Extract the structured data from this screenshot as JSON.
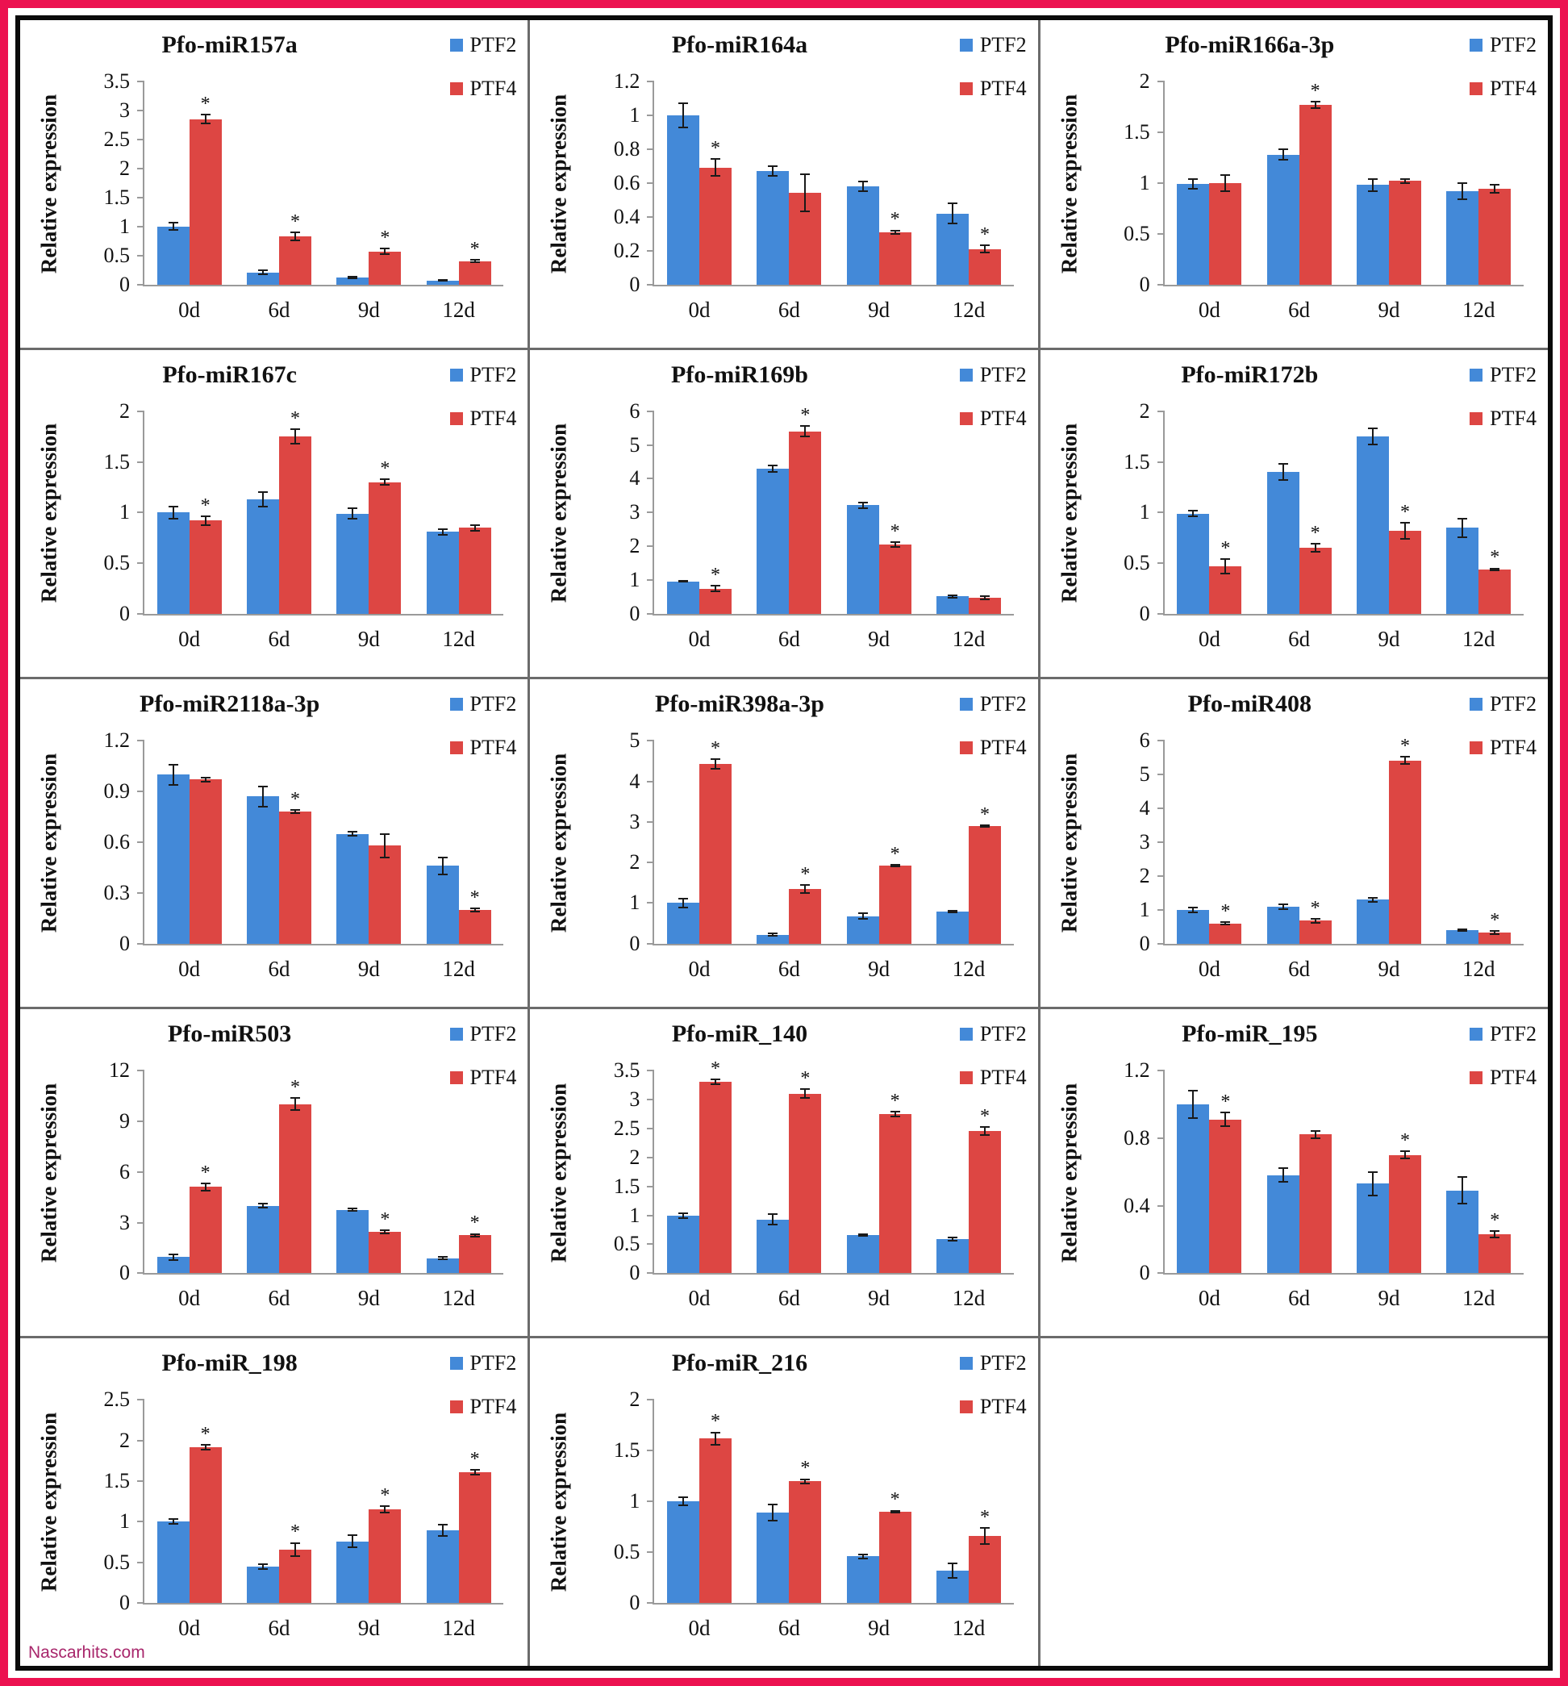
{
  "watermark": "Nascarhits.com",
  "ylabel": "Relative expression",
  "legend_labels": [
    "PTF2",
    "PTF4"
  ],
  "colors": {
    "ptf2": "#4389d8",
    "ptf4": "#dd4643",
    "frame_outer": "#ec1250",
    "frame_inner": "#0b0b0b",
    "axis": "#9a9a9a",
    "watermark": "#a8266b"
  },
  "chart_data": [
    {
      "type": "bar",
      "title": "Pfo-miR157a",
      "ylim": [
        0,
        3.5
      ],
      "yticks": [
        0,
        0.5,
        1,
        1.5,
        2,
        2.5,
        3,
        3.5
      ],
      "categories": [
        "0d",
        "6d",
        "9d",
        "12d"
      ],
      "series": [
        {
          "name": "PTF2",
          "values": [
            1.0,
            0.21,
            0.12,
            0.07
          ],
          "errors": [
            0.06,
            0.03,
            0.02,
            0.01
          ],
          "sig": [
            false,
            false,
            false,
            false
          ]
        },
        {
          "name": "PTF4",
          "values": [
            2.85,
            0.83,
            0.57,
            0.4
          ],
          "errors": [
            0.08,
            0.07,
            0.05,
            0.02
          ],
          "sig": [
            true,
            true,
            true,
            true
          ]
        }
      ]
    },
    {
      "type": "bar",
      "title": "Pfo-miR164a",
      "ylim": [
        0,
        1.2
      ],
      "yticks": [
        0,
        0.2,
        0.4,
        0.6,
        0.8,
        1,
        1.2
      ],
      "categories": [
        "0d",
        "6d",
        "9d",
        "12d"
      ],
      "series": [
        {
          "name": "PTF2",
          "values": [
            1.0,
            0.67,
            0.58,
            0.42
          ],
          "errors": [
            0.07,
            0.03,
            0.03,
            0.06
          ],
          "sig": [
            false,
            false,
            false,
            false
          ]
        },
        {
          "name": "PTF4",
          "values": [
            0.69,
            0.54,
            0.31,
            0.21
          ],
          "errors": [
            0.05,
            0.11,
            0.01,
            0.02
          ],
          "sig": [
            true,
            false,
            true,
            true
          ]
        }
      ]
    },
    {
      "type": "bar",
      "title": "Pfo-miR166a-3p",
      "ylim": [
        0,
        2
      ],
      "yticks": [
        0,
        0.5,
        1,
        1.5,
        2
      ],
      "categories": [
        "0d",
        "6d",
        "9d",
        "12d"
      ],
      "series": [
        {
          "name": "PTF2",
          "values": [
            0.99,
            1.28,
            0.98,
            0.92
          ],
          "errors": [
            0.05,
            0.05,
            0.06,
            0.08
          ],
          "sig": [
            false,
            false,
            false,
            false
          ]
        },
        {
          "name": "PTF4",
          "values": [
            1.0,
            1.77,
            1.02,
            0.94
          ],
          "errors": [
            0.08,
            0.03,
            0.02,
            0.04
          ],
          "sig": [
            false,
            true,
            false,
            false
          ]
        }
      ]
    },
    {
      "type": "bar",
      "title": "Pfo-miR167c",
      "ylim": [
        0,
        2
      ],
      "yticks": [
        0,
        0.5,
        1,
        1.5,
        2
      ],
      "categories": [
        "0d",
        "6d",
        "9d",
        "12d"
      ],
      "series": [
        {
          "name": "PTF2",
          "values": [
            1.0,
            1.13,
            0.99,
            0.81
          ],
          "errors": [
            0.06,
            0.07,
            0.05,
            0.03
          ],
          "sig": [
            false,
            false,
            false,
            false
          ]
        },
        {
          "name": "PTF4",
          "values": [
            0.92,
            1.75,
            1.3,
            0.85
          ],
          "errors": [
            0.04,
            0.07,
            0.03,
            0.03
          ],
          "sig": [
            true,
            true,
            true,
            false
          ]
        }
      ]
    },
    {
      "type": "bar",
      "title": "Pfo-miR169b",
      "ylim": [
        0,
        6
      ],
      "yticks": [
        0,
        1,
        2,
        3,
        4,
        5,
        6
      ],
      "categories": [
        "0d",
        "6d",
        "9d",
        "12d"
      ],
      "series": [
        {
          "name": "PTF2",
          "values": [
            0.97,
            4.3,
            3.22,
            0.52
          ],
          "errors": [
            0.02,
            0.1,
            0.08,
            0.04
          ],
          "sig": [
            false,
            false,
            false,
            false
          ]
        },
        {
          "name": "PTF4",
          "values": [
            0.75,
            5.4,
            2.05,
            0.48
          ],
          "errors": [
            0.08,
            0.15,
            0.07,
            0.04
          ],
          "sig": [
            true,
            true,
            true,
            false
          ]
        }
      ]
    },
    {
      "type": "bar",
      "title": "Pfo-miR172b",
      "ylim": [
        0,
        2
      ],
      "yticks": [
        0,
        0.5,
        1,
        1.5,
        2
      ],
      "categories": [
        "0d",
        "6d",
        "9d",
        "12d"
      ],
      "series": [
        {
          "name": "PTF2",
          "values": [
            0.99,
            1.4,
            1.75,
            0.85
          ],
          "errors": [
            0.03,
            0.08,
            0.08,
            0.09
          ],
          "sig": [
            false,
            false,
            false,
            false
          ]
        },
        {
          "name": "PTF4",
          "values": [
            0.47,
            0.65,
            0.82,
            0.44
          ],
          "errors": [
            0.07,
            0.04,
            0.08,
            0.01
          ],
          "sig": [
            true,
            true,
            true,
            true
          ]
        }
      ]
    },
    {
      "type": "bar",
      "title": "Pfo-miR2118a-3p",
      "ylim": [
        0,
        1.2
      ],
      "yticks": [
        0,
        0.3,
        0.6,
        0.9,
        1.2
      ],
      "categories": [
        "0d",
        "6d",
        "9d",
        "12d"
      ],
      "series": [
        {
          "name": "PTF2",
          "values": [
            1.0,
            0.87,
            0.65,
            0.46
          ],
          "errors": [
            0.06,
            0.06,
            0.01,
            0.05
          ],
          "sig": [
            false,
            false,
            false,
            false
          ]
        },
        {
          "name": "PTF4",
          "values": [
            0.97,
            0.78,
            0.58,
            0.2
          ],
          "errors": [
            0.01,
            0.01,
            0.07,
            0.01
          ],
          "sig": [
            false,
            true,
            false,
            true
          ]
        }
      ]
    },
    {
      "type": "bar",
      "title": "Pfo-miR398a-3p",
      "ylim": [
        0,
        5
      ],
      "yticks": [
        0,
        1,
        2,
        3,
        4,
        5
      ],
      "categories": [
        "0d",
        "6d",
        "9d",
        "12d"
      ],
      "series": [
        {
          "name": "PTF2",
          "values": [
            1.0,
            0.22,
            0.68,
            0.8
          ],
          "errors": [
            0.1,
            0.03,
            0.07,
            0.02
          ],
          "sig": [
            false,
            false,
            false,
            false
          ]
        },
        {
          "name": "PTF4",
          "values": [
            4.42,
            1.35,
            1.92,
            2.9
          ],
          "errors": [
            0.12,
            0.1,
            0.02,
            0.02
          ],
          "sig": [
            true,
            true,
            true,
            true
          ]
        }
      ]
    },
    {
      "type": "bar",
      "title": "Pfo-miR408",
      "ylim": [
        0,
        6
      ],
      "yticks": [
        0,
        1,
        2,
        3,
        4,
        5,
        6
      ],
      "categories": [
        "0d",
        "6d",
        "9d",
        "12d"
      ],
      "series": [
        {
          "name": "PTF2",
          "values": [
            1.0,
            1.1,
            1.3,
            0.4
          ],
          "errors": [
            0.08,
            0.07,
            0.06,
            0.02
          ],
          "sig": [
            false,
            false,
            false,
            false
          ]
        },
        {
          "name": "PTF4",
          "values": [
            0.6,
            0.68,
            5.42,
            0.33
          ],
          "errors": [
            0.03,
            0.06,
            0.1,
            0.05
          ],
          "sig": [
            true,
            true,
            true,
            true
          ]
        }
      ]
    },
    {
      "type": "bar",
      "title": "Pfo-miR503",
      "ylim": [
        0,
        12
      ],
      "yticks": [
        0,
        3,
        6,
        9,
        12
      ],
      "categories": [
        "0d",
        "6d",
        "9d",
        "12d"
      ],
      "series": [
        {
          "name": "PTF2",
          "values": [
            0.95,
            4.0,
            3.75,
            0.9
          ],
          "errors": [
            0.15,
            0.12,
            0.08,
            0.08
          ],
          "sig": [
            false,
            false,
            false,
            false
          ]
        },
        {
          "name": "PTF4",
          "values": [
            5.1,
            10.0,
            2.45,
            2.25
          ],
          "errors": [
            0.2,
            0.35,
            0.08,
            0.08
          ],
          "sig": [
            true,
            true,
            true,
            true
          ]
        }
      ]
    },
    {
      "type": "bar",
      "title": "Pfo-miR_140",
      "ylim": [
        0,
        3.5
      ],
      "yticks": [
        0,
        0.5,
        1,
        1.5,
        2,
        2.5,
        3,
        3.5
      ],
      "categories": [
        "0d",
        "6d",
        "9d",
        "12d"
      ],
      "series": [
        {
          "name": "PTF2",
          "values": [
            0.99,
            0.93,
            0.66,
            0.59
          ],
          "errors": [
            0.04,
            0.09,
            0.02,
            0.03
          ],
          "sig": [
            false,
            false,
            false,
            false
          ]
        },
        {
          "name": "PTF4",
          "values": [
            3.3,
            3.1,
            2.75,
            2.45
          ],
          "errors": [
            0.04,
            0.08,
            0.04,
            0.07
          ],
          "sig": [
            true,
            true,
            true,
            true
          ]
        }
      ]
    },
    {
      "type": "bar",
      "title": "Pfo-miR_195",
      "ylim": [
        0,
        1.2
      ],
      "yticks": [
        0,
        0.4,
        0.8,
        1.2
      ],
      "categories": [
        "0d",
        "6d",
        "9d",
        "12d"
      ],
      "series": [
        {
          "name": "PTF2",
          "values": [
            1.0,
            0.58,
            0.53,
            0.49
          ],
          "errors": [
            0.08,
            0.04,
            0.07,
            0.08
          ],
          "sig": [
            false,
            false,
            false,
            false
          ]
        },
        {
          "name": "PTF4",
          "values": [
            0.91,
            0.82,
            0.7,
            0.23
          ],
          "errors": [
            0.04,
            0.02,
            0.02,
            0.02
          ],
          "sig": [
            true,
            false,
            true,
            true
          ]
        }
      ]
    },
    {
      "type": "bar",
      "title": "Pfo-miR_198",
      "ylim": [
        0,
        2.5
      ],
      "yticks": [
        0,
        0.5,
        1,
        1.5,
        2,
        2.5
      ],
      "categories": [
        "0d",
        "6d",
        "9d",
        "12d"
      ],
      "series": [
        {
          "name": "PTF2",
          "values": [
            1.0,
            0.45,
            0.76,
            0.89
          ],
          "errors": [
            0.03,
            0.03,
            0.07,
            0.07
          ],
          "sig": [
            false,
            false,
            false,
            false
          ]
        },
        {
          "name": "PTF4",
          "values": [
            1.92,
            0.66,
            1.15,
            1.61
          ],
          "errors": [
            0.03,
            0.08,
            0.04,
            0.03
          ],
          "sig": [
            true,
            true,
            true,
            true
          ]
        }
      ]
    },
    {
      "type": "bar",
      "title": "Pfo-miR_216",
      "ylim": [
        0,
        2
      ],
      "yticks": [
        0,
        0.5,
        1,
        1.5,
        2
      ],
      "categories": [
        "0d",
        "6d",
        "9d",
        "12d"
      ],
      "series": [
        {
          "name": "PTF2",
          "values": [
            1.0,
            0.89,
            0.46,
            0.32
          ],
          "errors": [
            0.04,
            0.08,
            0.02,
            0.07
          ],
          "sig": [
            false,
            false,
            false,
            false
          ]
        },
        {
          "name": "PTF4",
          "values": [
            1.62,
            1.2,
            0.9,
            0.66
          ],
          "errors": [
            0.06,
            0.02,
            0.01,
            0.08
          ],
          "sig": [
            true,
            true,
            true,
            true
          ]
        }
      ]
    }
  ]
}
